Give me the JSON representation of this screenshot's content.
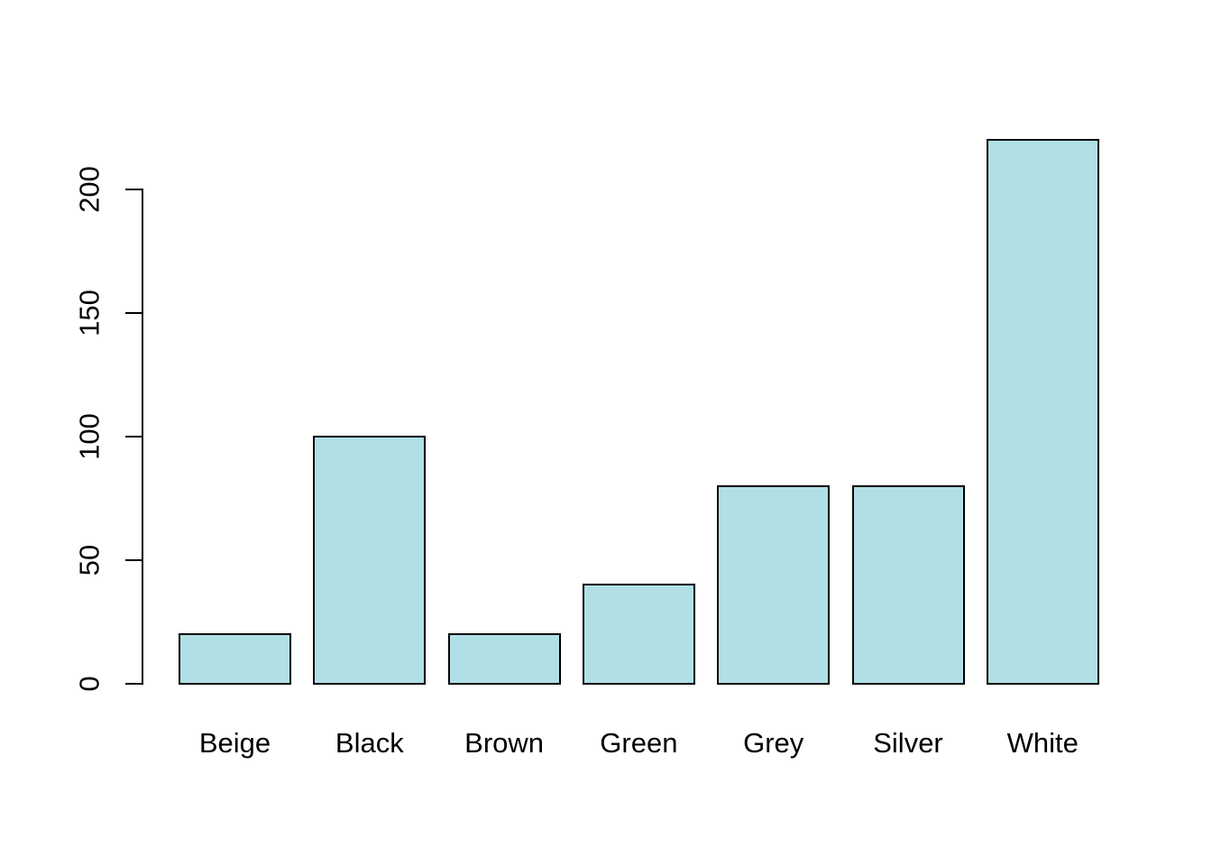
{
  "chart_data": {
    "type": "bar",
    "categories": [
      "Beige",
      "Black",
      "Brown",
      "Green",
      "Grey",
      "Silver",
      "White"
    ],
    "values": [
      20,
      100,
      20,
      40,
      80,
      80,
      220
    ],
    "title": "",
    "xlabel": "",
    "ylabel": "",
    "ylim": [
      0,
      220
    ],
    "yticks": [
      0,
      50,
      100,
      150,
      200
    ],
    "grid": false,
    "legend_position": "none",
    "colors": {
      "bar_fill": "#B0E0E6",
      "bar_border": "#000000",
      "axis": "#000000",
      "background": "#FFFFFF"
    }
  }
}
